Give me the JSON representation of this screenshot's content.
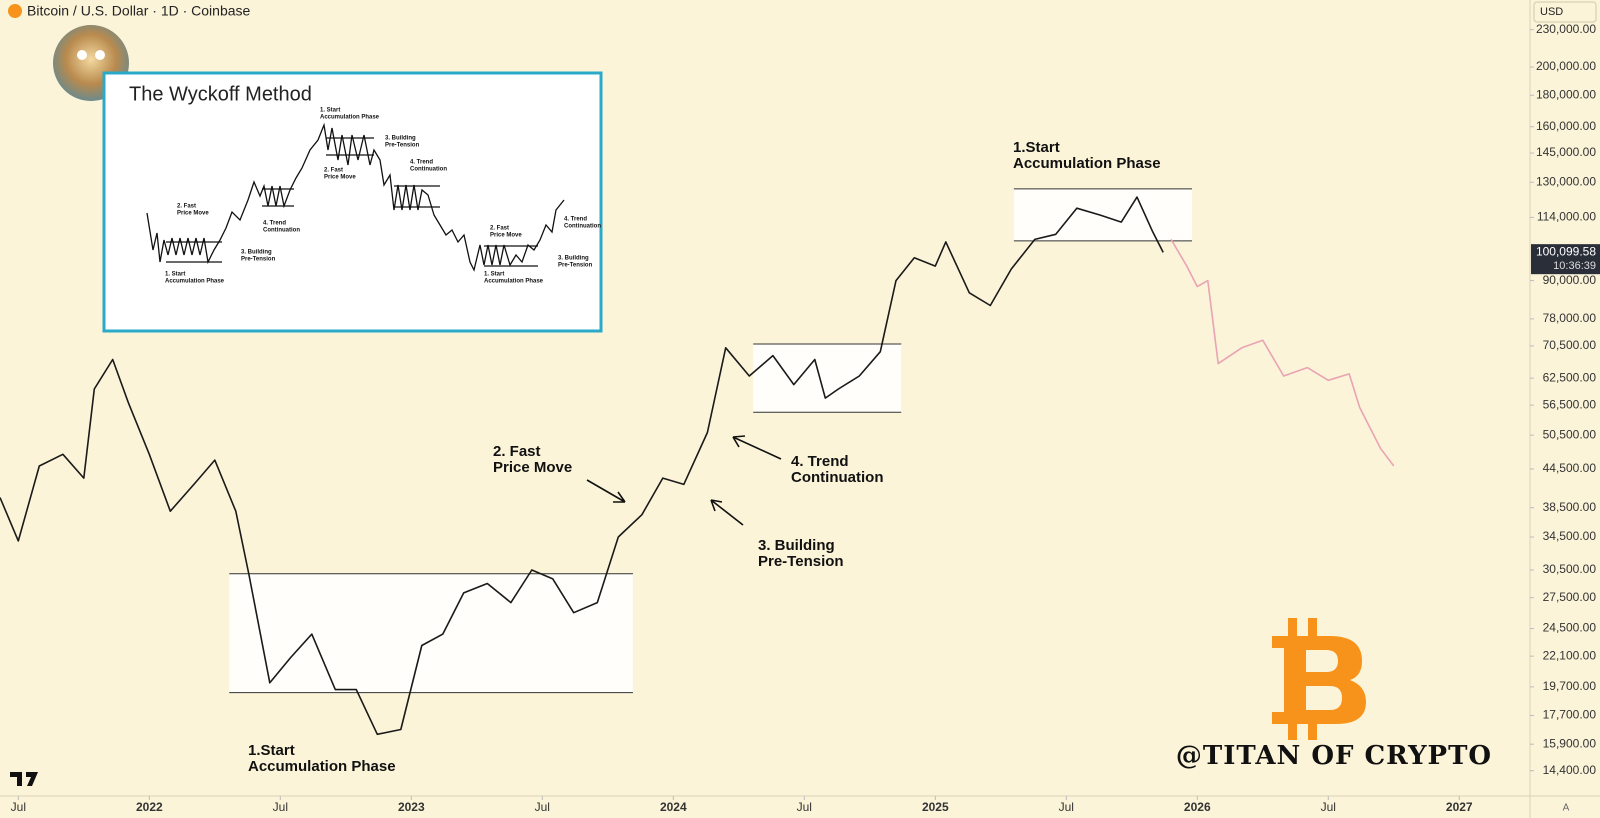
{
  "header": {
    "symbol": "Bitcoin / U.S. Dollar · 1D · Coinbase"
  },
  "controls": {
    "currency": "USD",
    "auto_scale": "A"
  },
  "chart_data": {
    "type": "line",
    "log_scale": true,
    "xlim": [
      2021.43,
      2027.27
    ],
    "ylim": [
      13100,
      257000
    ],
    "xticks": [
      {
        "value": 2021.5,
        "label": "Jul"
      },
      2022,
      {
        "value": 2022.5,
        "label": "Jul"
      },
      2023,
      {
        "value": 2023.5,
        "label": "Jul"
      },
      2024,
      {
        "value": 2024.5,
        "label": "Jul"
      },
      2025,
      {
        "value": 2025.5,
        "label": "Jul"
      },
      2026,
      {
        "value": 2026.5,
        "label": "Jul"
      },
      2027
    ],
    "yticks": [
      {
        "value": 230000,
        "label": "230,000.00"
      },
      {
        "value": 200000,
        "label": "200,000.00"
      },
      {
        "value": 180000,
        "label": "180,000.00"
      },
      {
        "value": 160000,
        "label": "160,000.00"
      },
      {
        "value": 145000,
        "label": "145,000.00"
      },
      {
        "value": 130000,
        "label": "130,000.00"
      },
      {
        "value": 114000,
        "label": "114,000.00"
      },
      {
        "value": 90000,
        "label": "90,000.00"
      },
      {
        "value": 78000,
        "label": "78,000.00"
      },
      {
        "value": 70500,
        "label": "70,500.00"
      },
      {
        "value": 62500,
        "label": "62,500.00"
      },
      {
        "value": 56500,
        "label": "56,500.00"
      },
      {
        "value": 50500,
        "label": "50,500.00"
      },
      {
        "value": 44500,
        "label": "44,500.00"
      },
      {
        "value": 38500,
        "label": "38,500.00"
      },
      {
        "value": 34500,
        "label": "34,500.00"
      },
      {
        "value": 30500,
        "label": "30,500.00"
      },
      {
        "value": 27500,
        "label": "27,500.00"
      },
      {
        "value": 24500,
        "label": "24,500.00"
      },
      {
        "value": 22100,
        "label": "22,100.00"
      },
      {
        "value": 19700,
        "label": "19,700.00"
      },
      {
        "value": 17700,
        "label": "17,700.00"
      },
      {
        "value": 15900,
        "label": "15,900.00"
      },
      {
        "value": 14400,
        "label": "14,400.00"
      }
    ],
    "series": [
      {
        "color": "#1a1a1a",
        "x": [
          2021.43,
          2021.5,
          2021.58,
          2021.67,
          2021.75,
          2021.79,
          2021.86,
          2021.92,
          2022.0,
          2022.08,
          2022.17,
          2022.25,
          2022.33,
          2022.38,
          2022.46,
          2022.54,
          2022.62,
          2022.71,
          2022.79,
          2022.87,
          2022.96,
          2023.04,
          2023.12,
          2023.2,
          2023.29,
          2023.38,
          2023.46,
          2023.54,
          2023.62,
          2023.71,
          2023.79,
          2023.88,
          2023.96,
          2024.04,
          2024.13,
          2024.2,
          2024.29,
          2024.38,
          2024.46,
          2024.54,
          2024.58,
          2024.63,
          2024.71,
          2024.79,
          2024.85,
          2024.92,
          2025.0,
          2025.04,
          2025.13,
          2025.21,
          2025.29,
          2025.38,
          2025.46,
          2025.54,
          2025.63,
          2025.71,
          2025.77,
          2025.83,
          2025.87
        ],
        "values": [
          40000,
          34000,
          45000,
          47000,
          43000,
          60000,
          67000,
          57000,
          47000,
          38000,
          42000,
          46000,
          38000,
          30000,
          20000,
          22000,
          24000,
          19500,
          19500,
          16500,
          16800,
          23000,
          24000,
          28000,
          29000,
          27000,
          30500,
          29500,
          26000,
          27000,
          34500,
          37500,
          43000,
          42000,
          51000,
          70000,
          63000,
          68000,
          61000,
          67000,
          58000,
          60000,
          63000,
          69000,
          90000,
          98000,
          95000,
          104000,
          86000,
          82000,
          94000,
          105000,
          107000,
          118000,
          115000,
          112000,
          123000,
          108000,
          100000
        ]
      },
      {
        "color": "#e9a3b3",
        "x": [
          2025.9,
          2025.96,
          2026.0,
          2026.04,
          2026.08,
          2026.17,
          2026.25,
          2026.33,
          2026.42,
          2026.5,
          2026.58,
          2026.62,
          2026.7,
          2026.75
        ],
        "values": [
          105000,
          95000,
          88000,
          90000,
          66000,
          70000,
          72000,
          63000,
          65000,
          62000,
          63500,
          56000,
          48000,
          45000
        ]
      }
    ],
    "last_price": {
      "value": 100099.58,
      "label": "100,099.58"
    },
    "countdown": "10:36:39",
    "zones": [
      {
        "x": [
          2022.305,
          2023.846
        ],
        "y": [
          19280,
          30070
        ]
      },
      {
        "x": [
          2024.305,
          2024.87
        ],
        "y": [
          55000,
          71000
        ]
      },
      {
        "x": [
          2025.3,
          2025.98
        ],
        "y": [
          104400,
          126800
        ]
      }
    ],
    "annotations": [
      {
        "lines": [
          "1.Start",
          "Accumulation Phase"
        ]
      },
      {
        "lines": [
          "2. Fast",
          "Price Move"
        ]
      },
      {
        "lines": [
          "3. Building",
          "Pre-Tension"
        ]
      },
      {
        "lines": [
          "4. Trend",
          "Continuation"
        ]
      },
      {
        "lines": [
          "1.Start",
          "Accumulation Phase"
        ]
      }
    ]
  },
  "inset": {
    "title": "The Wyckoff Method",
    "labels": [
      {
        "lines": [
          "1. Start",
          "Accumulation Phase"
        ]
      },
      {
        "lines": [
          "2. Fast",
          "Price Move"
        ]
      },
      {
        "lines": [
          "3. Building",
          "Pre-Tension"
        ]
      },
      {
        "lines": [
          "4. Trend",
          "Continuation"
        ]
      },
      {
        "lines": [
          "1. Start",
          "Accumulation Phase"
        ]
      },
      {
        "lines": [
          "3. Building",
          "Pre-Tension"
        ]
      },
      {
        "lines": [
          "2. Fast",
          "Price Move"
        ]
      },
      {
        "lines": [
          "4. Trend",
          "Continuation"
        ]
      },
      {
        "lines": [
          "2. Fast",
          "Price Move"
        ]
      },
      {
        "lines": [
          "4. Trend",
          "Continuation"
        ]
      },
      {
        "lines": [
          "1. Start",
          "Accumulation Phase"
        ]
      },
      {
        "lines": [
          "3. Building",
          "Pre-Tension"
        ]
      }
    ]
  },
  "watermark": "@TITAN OF CRYPTO"
}
